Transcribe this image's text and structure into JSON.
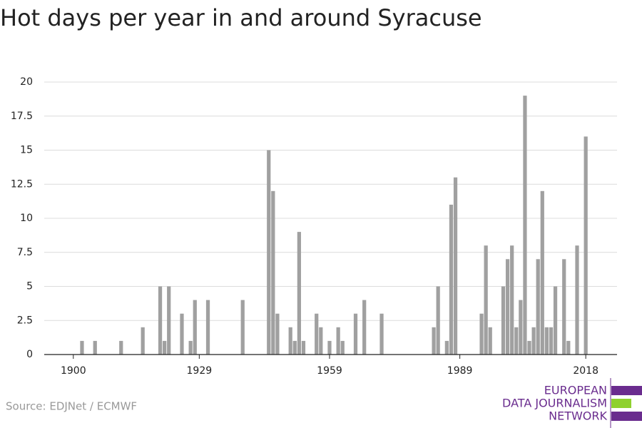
{
  "chart_data": {
    "type": "bar",
    "title": "Hot days per year in and around Syracuse",
    "x": [
      1902,
      1905,
      1911,
      1916,
      1920,
      1921,
      1922,
      1925,
      1927,
      1928,
      1931,
      1939,
      1945,
      1946,
      1947,
      1950,
      1951,
      1952,
      1953,
      1956,
      1957,
      1959,
      1961,
      1962,
      1965,
      1967,
      1971,
      1983,
      1984,
      1986,
      1987,
      1988,
      1994,
      1995,
      1996,
      1999,
      2000,
      2001,
      2002,
      2003,
      2004,
      2005,
      2006,
      2007,
      2008,
      2009,
      2010,
      2011,
      2013,
      2014,
      2016,
      2018
    ],
    "values": [
      1,
      1,
      1,
      2,
      5,
      1,
      5,
      3,
      1,
      4,
      4,
      4,
      15,
      12,
      3,
      2,
      1,
      9,
      1,
      3,
      2,
      1,
      2,
      1,
      3,
      4,
      3,
      2,
      5,
      1,
      11,
      13,
      3,
      8,
      2,
      5,
      7,
      8,
      2,
      4,
      19,
      1,
      2,
      7,
      12,
      2,
      2,
      5,
      7,
      1,
      8,
      16
    ],
    "color": "#a0a0a0",
    "xlim": [
      1893.3,
      2025.2
    ],
    "xticks": [
      1900,
      1929,
      1959,
      1989,
      2018
    ],
    "ylim": [
      0,
      20
    ],
    "yticks": [
      0,
      2.5,
      5,
      7.5,
      10,
      12.5,
      15,
      17.5,
      20
    ],
    "grid": true,
    "source": "Source: EDJNet / ECMWF",
    "logo": [
      "EUROPEAN",
      "DATA JOURNALISM",
      "NETWORK"
    ]
  }
}
